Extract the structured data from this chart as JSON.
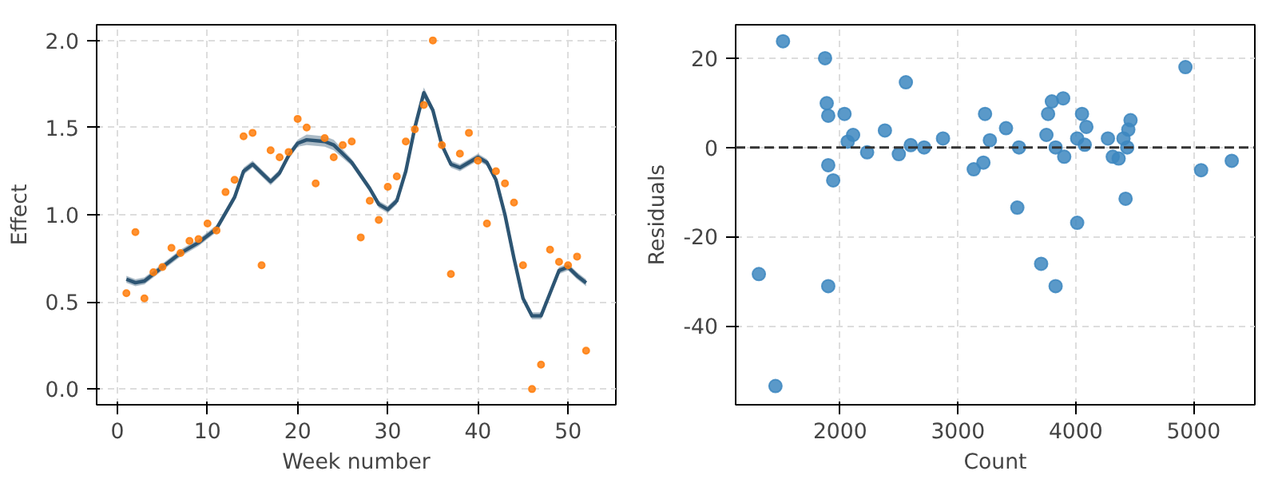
{
  "chart_data": [
    {
      "type": "scatter",
      "xlabel": "Week number",
      "ylabel": "Effect",
      "xlim": [
        -2.3,
        55.3
      ],
      "ylim": [
        -0.09,
        2.09
      ],
      "xticks": [
        0,
        10,
        20,
        30,
        40,
        50
      ],
      "yticks": [
        {
          "value": 0,
          "label": "0.0"
        },
        {
          "value": 0.5,
          "label": "0.5"
        },
        {
          "value": 1,
          "label": "1.0"
        },
        {
          "value": 1.5,
          "label": "1.5"
        },
        {
          "value": 2,
          "label": "2.0"
        }
      ],
      "grid": true,
      "marker": "circle",
      "series": [
        {
          "type": "line",
          "marker": "none",
          "color": "#2d5573",
          "line_style": "solid",
          "x": [
            1,
            2,
            3,
            5,
            7,
            9,
            11,
            13,
            14,
            15,
            16,
            17,
            18,
            19,
            20,
            21,
            23,
            24,
            26,
            28,
            29,
            30,
            31,
            32,
            33,
            34,
            35,
            36,
            37,
            38,
            39,
            40,
            41,
            42,
            43,
            44,
            45,
            46,
            47,
            48,
            49,
            50,
            51,
            52
          ],
          "values": [
            0.63,
            0.61,
            0.62,
            0.7,
            0.78,
            0.84,
            0.92,
            1.1,
            1.25,
            1.29,
            1.24,
            1.19,
            1.24,
            1.34,
            1.41,
            1.43,
            1.42,
            1.4,
            1.3,
            1.15,
            1.06,
            1.03,
            1.08,
            1.25,
            1.5,
            1.7,
            1.6,
            1.4,
            1.29,
            1.27,
            1.3,
            1.33,
            1.3,
            1.2,
            1.0,
            0.75,
            0.52,
            0.42,
            0.42,
            0.55,
            0.68,
            0.7,
            0.65,
            0.61
          ],
          "lower": [
            0.61,
            0.59,
            0.6,
            0.68,
            0.76,
            0.82,
            0.9,
            1.08,
            1.23,
            1.27,
            1.22,
            1.17,
            1.22,
            1.32,
            1.39,
            1.4,
            1.39,
            1.37,
            1.28,
            1.13,
            1.04,
            1.01,
            1.06,
            1.23,
            1.48,
            1.67,
            1.58,
            1.38,
            1.27,
            1.25,
            1.28,
            1.31,
            1.28,
            1.18,
            0.98,
            0.73,
            0.5,
            0.4,
            0.4,
            0.53,
            0.66,
            0.68,
            0.63,
            0.59
          ],
          "upper": [
            0.65,
            0.63,
            0.64,
            0.72,
            0.8,
            0.86,
            0.94,
            1.12,
            1.27,
            1.31,
            1.26,
            1.21,
            1.26,
            1.36,
            1.43,
            1.46,
            1.45,
            1.43,
            1.32,
            1.17,
            1.08,
            1.05,
            1.1,
            1.27,
            1.52,
            1.73,
            1.62,
            1.42,
            1.31,
            1.29,
            1.32,
            1.35,
            1.32,
            1.22,
            1.02,
            0.77,
            0.54,
            0.44,
            0.44,
            0.57,
            0.7,
            0.72,
            0.67,
            0.63
          ]
        },
        {
          "color": "#ff7f0e",
          "x": [
            1,
            2,
            3,
            4,
            5,
            6,
            7,
            8,
            9,
            10,
            11,
            12,
            13,
            14,
            15,
            16,
            17,
            18,
            19,
            20,
            21,
            22,
            23,
            24,
            25,
            26,
            27,
            28,
            29,
            30,
            31,
            32,
            33,
            34,
            35,
            36,
            37,
            38,
            39,
            40,
            41,
            42,
            43,
            44,
            45,
            46,
            47,
            48,
            49,
            50,
            51,
            52
          ],
          "values": [
            0.55,
            0.9,
            0.52,
            0.67,
            0.7,
            0.81,
            0.78,
            0.85,
            0.86,
            0.95,
            0.91,
            1.13,
            1.2,
            1.45,
            1.47,
            0.71,
            1.37,
            1.33,
            1.36,
            1.55,
            1.5,
            1.18,
            1.44,
            1.33,
            1.4,
            1.42,
            0.87,
            1.08,
            0.97,
            1.16,
            1.22,
            1.42,
            1.49,
            1.63,
            2.0,
            1.4,
            0.66,
            1.35,
            1.47,
            1.31,
            0.95,
            1.25,
            1.18,
            1.07,
            0.71,
            0.0,
            0.14,
            0.8,
            0.73,
            0.71,
            0.76,
            0.22
          ]
        }
      ]
    },
    {
      "type": "scatter",
      "xlabel": "Count",
      "ylabel": "Residuals",
      "xlim": [
        1113,
        5520
      ],
      "ylim": [
        -57.7,
        27.5
      ],
      "xticks": [
        2000,
        3000,
        4000,
        5000
      ],
      "yticks": [
        -40,
        -20,
        0,
        20
      ],
      "grid": true,
      "marker": "circle",
      "ref_lines": [
        {
          "axis": "y",
          "value": 0,
          "color": "#333333",
          "line_style": "dashed"
        }
      ],
      "series": [
        {
          "color": "#3d87c0",
          "x": [
            1515,
            1872,
            1886,
            1899,
            2037,
            2064,
            2110,
            2229,
            1899,
            1941,
            1310,
            1451,
            1899,
            2380,
            2558,
            2498,
            2599,
            2713,
            2873,
            3134,
            3216,
            3230,
            3271,
            3408,
            3518,
            3504,
            3706,
            3829,
            3751,
            3765,
            3797,
            3893,
            3829,
            3902,
            4012,
            4053,
            4090,
            4012,
            4076,
            4273,
            4314,
            4364,
            4423,
            4405,
            4437,
            4446,
            4465,
            4931,
            5064,
            5324
          ],
          "values": [
            23.8,
            20,
            9.9,
            7.1,
            7.5,
            1.3,
            2.8,
            -1.1,
            -4,
            -7.4,
            -28.4,
            -53.5,
            -31.1,
            3.8,
            14.6,
            -1.5,
            0.5,
            0,
            2,
            -4.9,
            -3.4,
            7.5,
            1.6,
            4.3,
            0,
            -13.5,
            -26.1,
            -31.1,
            2.8,
            7.5,
            10.3,
            11,
            0,
            -2.1,
            -16.9,
            7.5,
            4.6,
            2,
            0.6,
            2,
            -2.1,
            -2.5,
            -11.5,
            2,
            0,
            4,
            6.1,
            18,
            -5.1,
            -3
          ]
        }
      ]
    }
  ]
}
